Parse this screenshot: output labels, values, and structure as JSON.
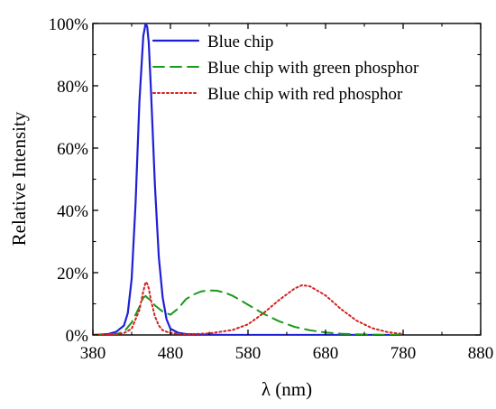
{
  "chart_data": {
    "type": "line",
    "title": "",
    "xlabel": "λ (nm)",
    "ylabel": "Relative Intensity",
    "xlim": [
      380,
      880
    ],
    "ylim": [
      0,
      100
    ],
    "x_ticks": [
      380,
      480,
      580,
      680,
      780,
      880
    ],
    "y_ticks": [
      0,
      20,
      40,
      60,
      80,
      100
    ],
    "x_tick_labels": [
      "380",
      "480",
      "580",
      "680",
      "780",
      "880"
    ],
    "y_tick_labels": [
      "0%",
      "20%",
      "40%",
      "60%",
      "80%",
      "100%"
    ],
    "grid": false,
    "legend_position": "top-right",
    "series": [
      {
        "name": "Blue chip",
        "color": "#1f1fd6",
        "dash": "solid",
        "x": [
          380,
          400,
          410,
          420,
          425,
          430,
          435,
          440,
          445,
          448,
          450,
          452,
          455,
          460,
          465,
          470,
          475,
          480,
          490,
          500,
          520,
          560,
          600,
          680,
          780
        ],
        "y": [
          0,
          0.3,
          1,
          3,
          7,
          18,
          42,
          75,
          96,
          100,
          99,
          94,
          78,
          48,
          25,
          12,
          5,
          2,
          0.7,
          0.3,
          0.1,
          0,
          0,
          0,
          0
        ]
      },
      {
        "name": "Blue chip with green phosphor",
        "color": "#1a9a1a",
        "dash": "dashed",
        "x": [
          380,
          410,
          420,
          430,
          440,
          445,
          448,
          450,
          455,
          460,
          470,
          480,
          490,
          500,
          510,
          520,
          530,
          540,
          550,
          560,
          570,
          580,
          600,
          620,
          640,
          660,
          680,
          700,
          720,
          740,
          760,
          780
        ],
        "y": [
          0,
          0.3,
          1,
          4,
          9,
          12,
          12.5,
          12,
          11,
          9.5,
          7.5,
          6.5,
          8.5,
          11.5,
          13,
          14,
          14.3,
          14.2,
          13.6,
          12.6,
          11.2,
          9.7,
          6.8,
          4.4,
          2.6,
          1.5,
          0.8,
          0.4,
          0.2,
          0.1,
          0,
          0
        ]
      },
      {
        "name": "Blue chip with red phosphor",
        "color": "#d42020",
        "dash": "dotted",
        "x": [
          380,
          410,
          420,
          430,
          440,
          445,
          448,
          450,
          452,
          455,
          460,
          465,
          470,
          480,
          500,
          530,
          560,
          580,
          600,
          620,
          640,
          650,
          660,
          680,
          700,
          720,
          740,
          760,
          780
        ],
        "y": [
          0,
          0.2,
          0.6,
          2,
          8,
          14,
          17,
          16.5,
          15,
          11,
          6,
          3,
          1.5,
          0.6,
          0.2,
          0.5,
          1.6,
          3.4,
          7,
          11.2,
          14.9,
          16,
          15.6,
          12.7,
          8.3,
          4.6,
          2.2,
          0.9,
          0.3
        ]
      }
    ]
  }
}
